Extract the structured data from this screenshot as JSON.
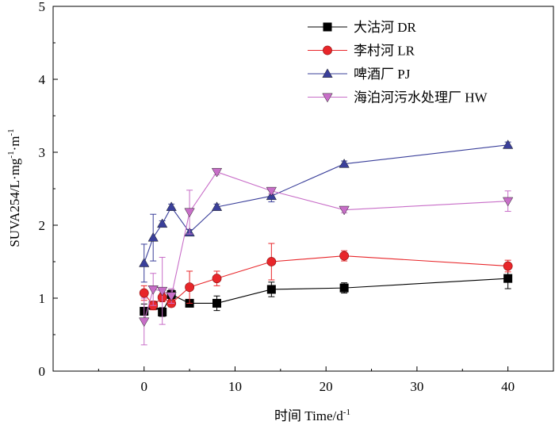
{
  "chart_data": {
    "type": "line",
    "title": "",
    "xlabel": "时间 Time/d",
    "xlabel_sup": "-1",
    "ylabel_parts": [
      {
        "t": "SUVA254/L·mg",
        "sup": false
      },
      {
        "t": "-1",
        "sup": true
      },
      {
        "t": "·m",
        "sup": false
      },
      {
        "t": "-1",
        "sup": true
      }
    ],
    "xlim": [
      -10,
      45
    ],
    "ylim": [
      0,
      5
    ],
    "xticks": [
      0,
      10,
      20,
      30,
      40
    ],
    "yticks": [
      0,
      1,
      2,
      3,
      4,
      5
    ],
    "grid": false,
    "legend_position": "top-right",
    "series": [
      {
        "name": "大沽河 DR",
        "color": "#000000",
        "marker": "square",
        "x": [
          0,
          1,
          2,
          3,
          5,
          8,
          14,
          22,
          40
        ],
        "values": [
          0.82,
          0.9,
          0.81,
          1.05,
          0.93,
          0.93,
          1.12,
          1.14,
          1.27
        ],
        "errors": [
          0.1,
          0.05,
          0.06,
          0.06,
          0.04,
          0.1,
          0.1,
          0.07,
          0.14
        ]
      },
      {
        "name": "李村河 LR",
        "color": "#e8262a",
        "marker": "circle",
        "x": [
          0,
          1,
          2,
          3,
          5,
          8,
          14,
          22,
          40
        ],
        "values": [
          1.07,
          0.9,
          1.01,
          0.93,
          1.15,
          1.27,
          1.5,
          1.58,
          1.44
        ],
        "errors": [
          0.1,
          0.06,
          0.06,
          0.05,
          0.22,
          0.1,
          0.25,
          0.07,
          0.08
        ]
      },
      {
        "name": "啤酒厂 PJ",
        "color": "#3a3f9a",
        "marker": "triangle-up",
        "x": [
          0,
          1,
          2,
          3,
          5,
          8,
          14,
          22,
          40
        ],
        "values": [
          1.48,
          1.83,
          2.02,
          2.25,
          1.9,
          2.25,
          2.4,
          2.84,
          3.1
        ],
        "errors": [
          0.26,
          0.32,
          0.04,
          0.04,
          0.04,
          0.04,
          0.08,
          0.04,
          0.04
        ]
      },
      {
        "name": "海泊河污水处理厂 HW",
        "color": "#c86ec8",
        "marker": "triangle-down",
        "x": [
          0,
          1,
          2,
          3,
          5,
          8,
          14,
          22,
          40
        ],
        "values": [
          0.68,
          1.12,
          1.1,
          1.03,
          2.18,
          2.73,
          2.47,
          2.21,
          2.33
        ],
        "errors": [
          0.32,
          0.22,
          0.46,
          0.1,
          0.3,
          0.04,
          0.04,
          0.04,
          0.14
        ]
      }
    ]
  }
}
